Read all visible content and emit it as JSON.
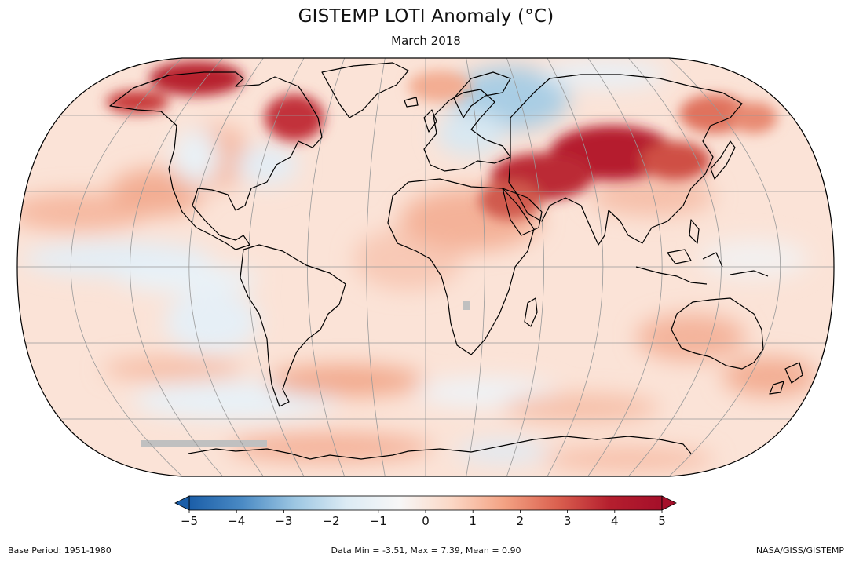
{
  "header": {
    "title": "GISTEMP LOTI Anomaly (°C)",
    "subtitle": "March 2018"
  },
  "colorbar": {
    "ticks": [
      "−5",
      "−4",
      "−3",
      "−2",
      "−1",
      "0",
      "1",
      "2",
      "3",
      "4",
      "5"
    ],
    "min": -5,
    "max": 5,
    "extend": "both",
    "colors": [
      "#1b5ea8",
      "#4a8ac4",
      "#9cc6e2",
      "#dcebf4",
      "#f7f7f7",
      "#fbd7c5",
      "#f3a283",
      "#db6150",
      "#b51f2e",
      "#a50f2a"
    ]
  },
  "footer": {
    "left": "Base Period: 1951-1980",
    "center": "Data Min = -3.51, Max = 7.39, Mean = 0.90",
    "right": "NASA/GISS/GISTEMP"
  },
  "map": {
    "projection": "Robinson",
    "ocean_base_color": "#fbe3d7",
    "coastline_color": "#000000",
    "graticule_color": "#999999",
    "missing_data_color": "#c0c0c0"
  }
}
